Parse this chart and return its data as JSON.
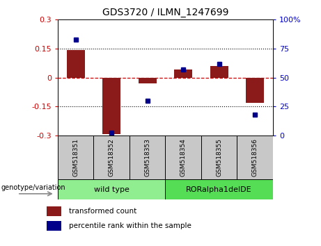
{
  "title": "GDS3720 / ILMN_1247699",
  "samples": [
    "GSM518351",
    "GSM518352",
    "GSM518353",
    "GSM518354",
    "GSM518355",
    "GSM518356"
  ],
  "red_values": [
    0.142,
    -0.295,
    -0.03,
    0.04,
    0.06,
    -0.13
  ],
  "blue_values": [
    83,
    2,
    30,
    57,
    62,
    18
  ],
  "ylim_left": [
    -0.3,
    0.3
  ],
  "ylim_right": [
    0,
    100
  ],
  "yticks_left": [
    -0.3,
    -0.15,
    0,
    0.15,
    0.3
  ],
  "yticks_right": [
    0,
    25,
    50,
    75,
    100
  ],
  "groups": [
    {
      "label": "wild type",
      "indices": [
        0,
        1,
        2
      ],
      "color": "#90EE90"
    },
    {
      "label": "RORalpha1delDE",
      "indices": [
        3,
        4,
        5
      ],
      "color": "#55DD55"
    }
  ],
  "group_label": "genotype/variation",
  "legend_red": "transformed count",
  "legend_blue": "percentile rank within the sample",
  "bar_color": "#8B1A1A",
  "dot_color": "#00008B",
  "zero_line_color": "#CC0000",
  "background_color": "#FFFFFF",
  "plot_bg": "#FFFFFF",
  "tick_bg": "#C8C8C8",
  "left_tick_color": "#CC0000",
  "right_tick_color": "#0000CC"
}
